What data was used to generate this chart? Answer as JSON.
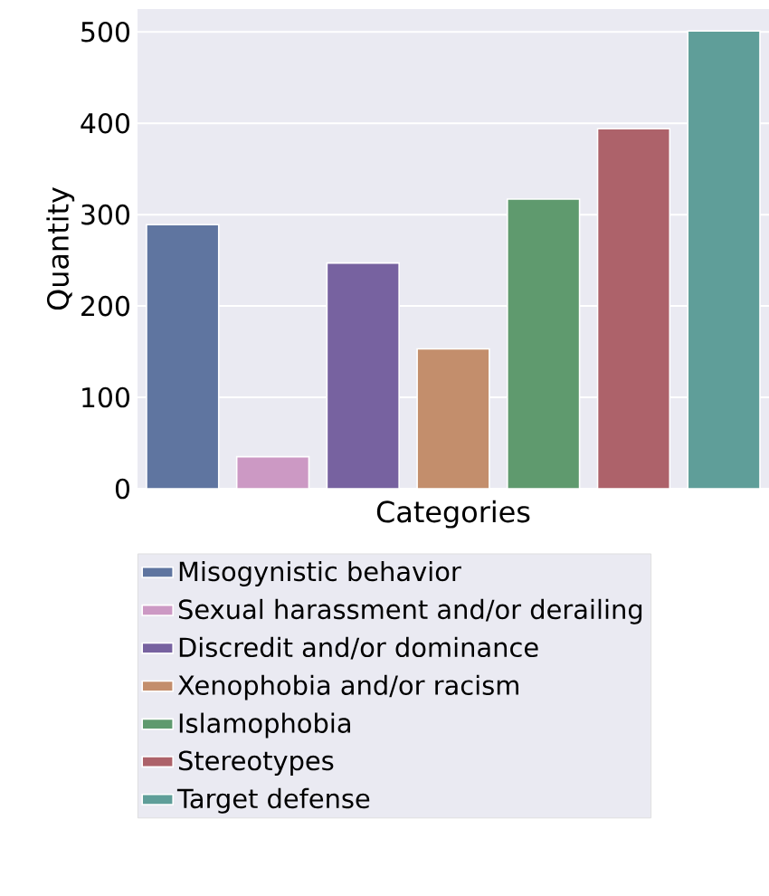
{
  "chart_data": {
    "type": "bar",
    "xlabel": "Categories",
    "ylabel": "Quantity",
    "categories": [
      null,
      null,
      null,
      null,
      null,
      null,
      null
    ],
    "series": [
      {
        "name": "Misogynistic behavior",
        "color": "#5f75a0",
        "values": [
          289,
          null,
          null,
          null,
          null,
          null,
          null
        ]
      },
      {
        "name": "Sexual harassment and/or derailing",
        "color": "#cc99c4",
        "values": [
          null,
          35,
          null,
          null,
          null,
          null,
          null
        ]
      },
      {
        "name": "Discredit and/or dominance",
        "color": "#7762a0",
        "values": [
          null,
          null,
          247,
          null,
          null,
          null,
          null
        ]
      },
      {
        "name": "Xenophobia and/or racism",
        "color": "#c38e6c",
        "values": [
          null,
          null,
          null,
          153,
          null,
          null,
          null
        ]
      },
      {
        "name": "Islamophobia",
        "color": "#5f9a6e",
        "values": [
          null,
          null,
          null,
          null,
          317,
          null,
          null
        ]
      },
      {
        "name": "Stereotypes",
        "color": "#ad626a",
        "values": [
          null,
          null,
          null,
          null,
          null,
          394,
          null
        ]
      },
      {
        "name": "Target defense",
        "color": "#5f9e99",
        "values": [
          null,
          null,
          null,
          null,
          null,
          null,
          501
        ]
      }
    ],
    "ylim": [
      0,
      525
    ],
    "yticks": [
      0,
      100,
      200,
      300,
      400,
      500
    ],
    "grid": "y",
    "legend": "bottom",
    "stacked": true
  }
}
